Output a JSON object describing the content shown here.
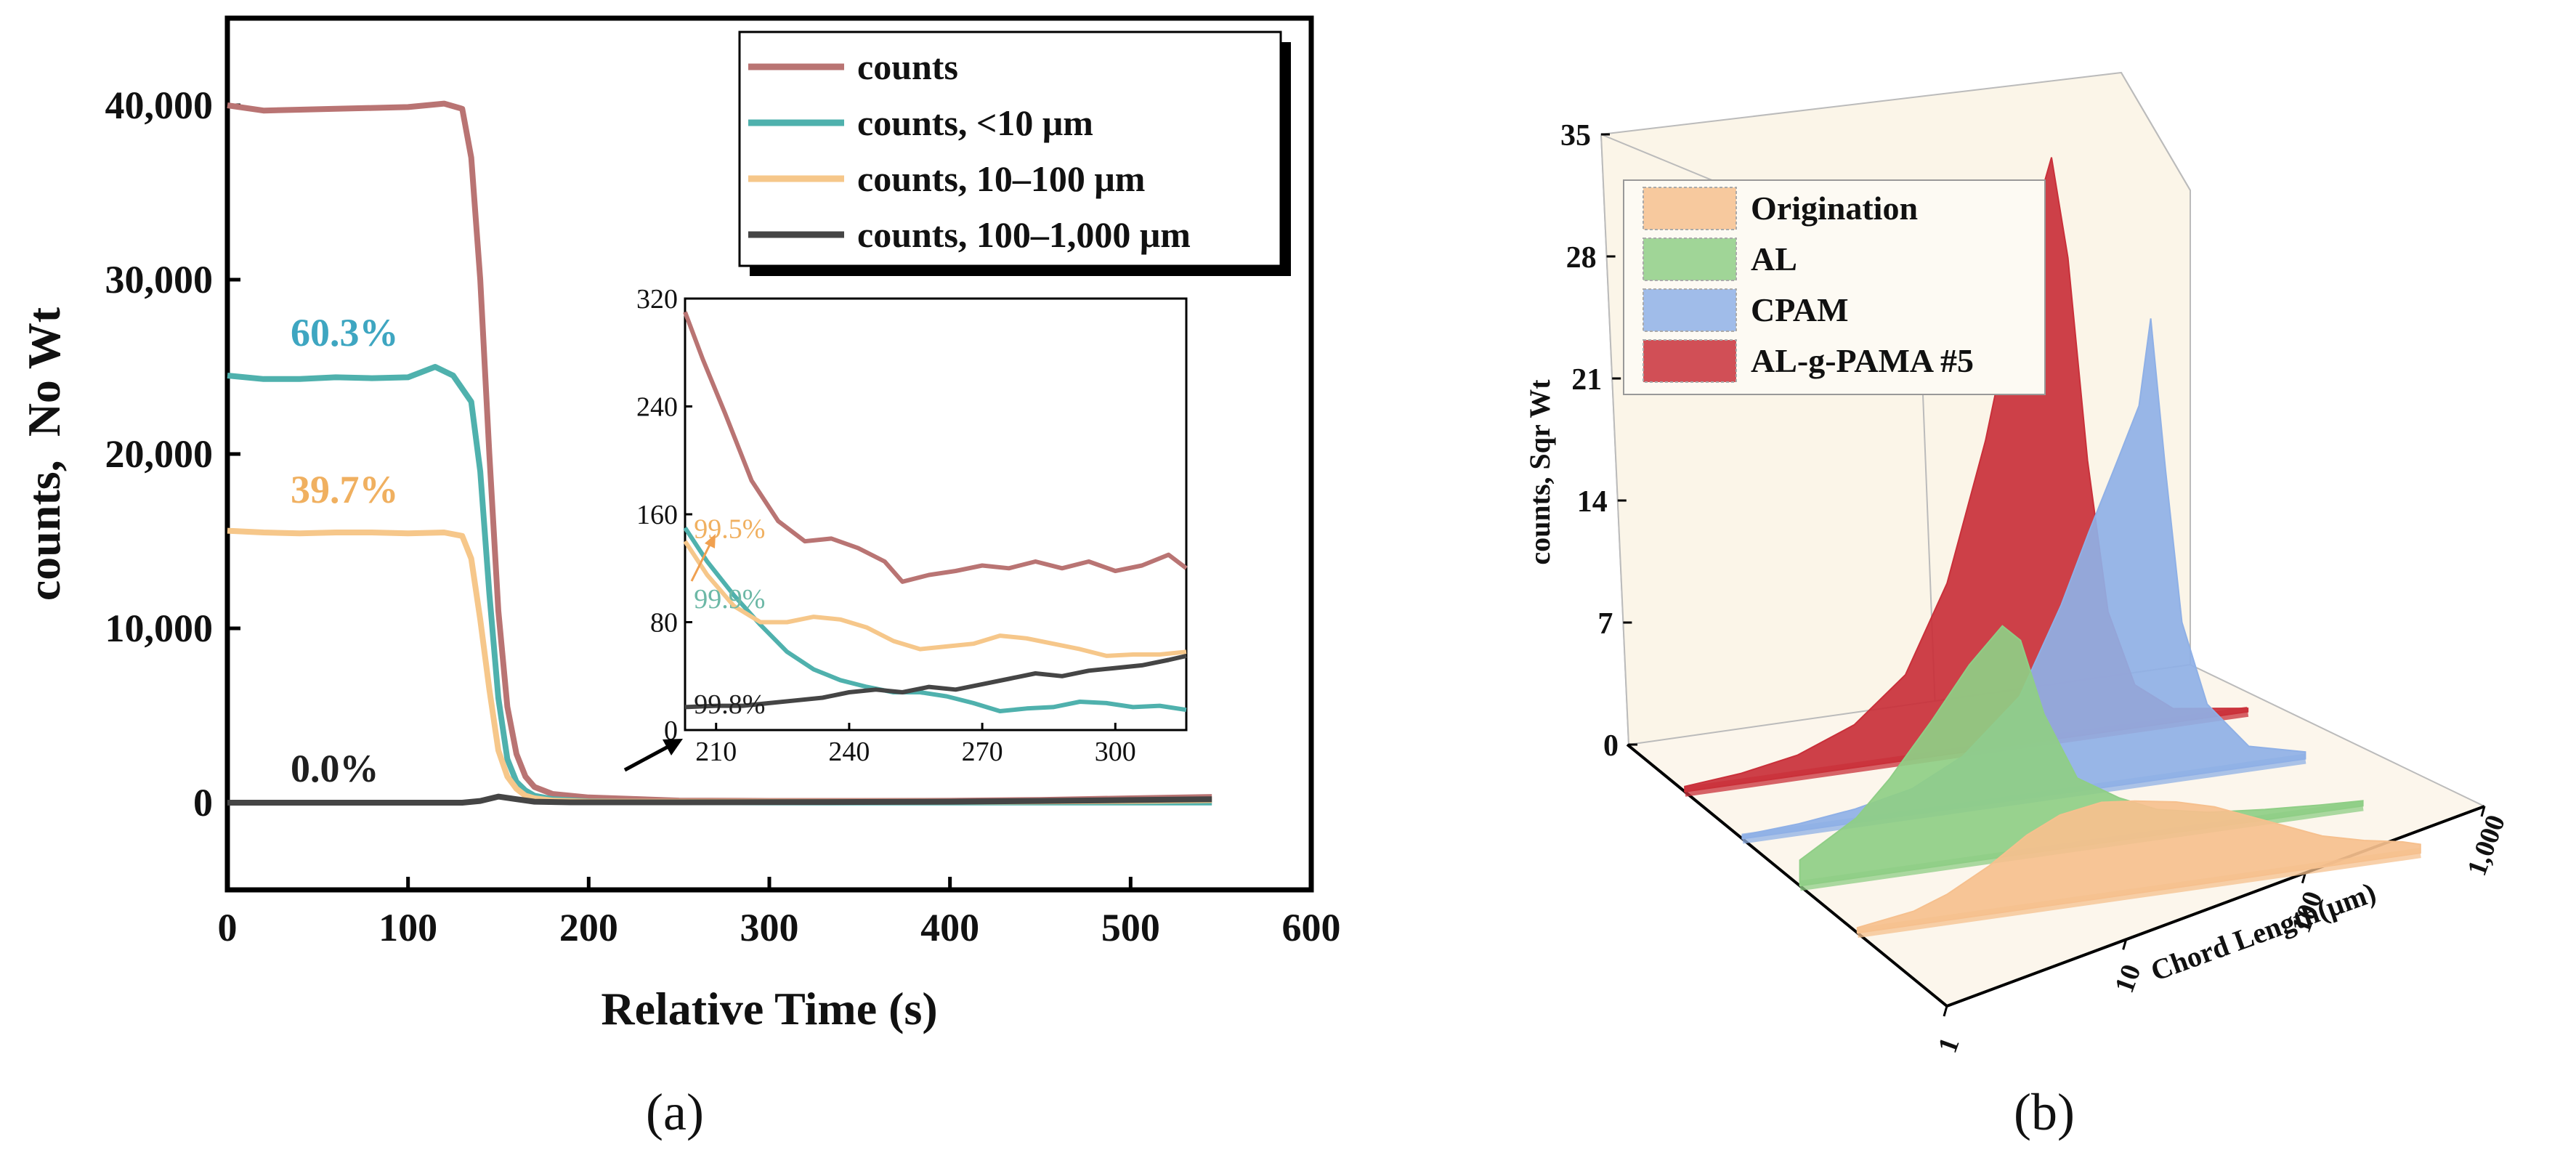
{
  "panel_labels": {
    "a": "(a)",
    "b": "(b)"
  },
  "chart_data": [
    {
      "type": "line",
      "panel": "a",
      "title": "",
      "xlabel": "Relative Time (s)",
      "ylabel": "counts,  No Wt",
      "xlim": [
        0,
        600
      ],
      "ylim": [
        -5000,
        45000
      ],
      "xticks": [
        0,
        100,
        200,
        300,
        400,
        500,
        600
      ],
      "xtick_labels": [
        "0",
        "100",
        "200",
        "300",
        "400",
        "500",
        "600"
      ],
      "yticks": [
        0,
        10000,
        20000,
        30000,
        40000
      ],
      "ytick_labels": [
        "0",
        "10,000",
        "20,000",
        "30,000",
        "40,000"
      ],
      "legend_position": "top-right",
      "series": [
        {
          "name": "counts",
          "color": "#b97473",
          "x": [
            0,
            20,
            40,
            60,
            80,
            100,
            120,
            130,
            135,
            140,
            145,
            150,
            155,
            160,
            165,
            170,
            180,
            200,
            250,
            300,
            350,
            400,
            450,
            500,
            545
          ],
          "y": [
            40000,
            39700,
            39750,
            39800,
            39850,
            39900,
            40100,
            39800,
            37000,
            30000,
            20000,
            11000,
            5500,
            2800,
            1500,
            900,
            500,
            300,
            120,
            100,
            100,
            110,
            160,
            250,
            330
          ]
        },
        {
          "name": "counts, <10 μm",
          "color": "#4fb1ad",
          "x": [
            0,
            20,
            40,
            60,
            80,
            100,
            115,
            125,
            135,
            140,
            145,
            150,
            155,
            160,
            165,
            170,
            180,
            200,
            250,
            300,
            350,
            400,
            450,
            500,
            545
          ],
          "y": [
            24500,
            24300,
            24300,
            24400,
            24350,
            24400,
            25000,
            24500,
            23000,
            19000,
            12000,
            6000,
            2500,
            1200,
            700,
            400,
            200,
            80,
            30,
            15,
            10,
            10,
            10,
            10,
            10
          ]
        },
        {
          "name": "counts, 10–100 μm",
          "color": "#f6c78a",
          "x": [
            0,
            20,
            40,
            60,
            80,
            100,
            120,
            130,
            135,
            140,
            145,
            150,
            155,
            160,
            165,
            170,
            180,
            200,
            250,
            300,
            350,
            400,
            450,
            500,
            545
          ],
          "y": [
            15600,
            15500,
            15450,
            15500,
            15500,
            15450,
            15500,
            15300,
            14000,
            10500,
            6500,
            3000,
            1500,
            800,
            400,
            250,
            120,
            60,
            60,
            60,
            50,
            60,
            70,
            100,
            150
          ]
        },
        {
          "name": "counts, 100–1,000 μm",
          "color": "#454545",
          "x": [
            0,
            50,
            100,
            130,
            140,
            150,
            160,
            170,
            190,
            250,
            300,
            350,
            400,
            450,
            500,
            545
          ],
          "y": [
            0,
            0,
            0,
            0,
            100,
            350,
            200,
            60,
            20,
            20,
            30,
            40,
            60,
            100,
            150,
            200
          ]
        }
      ],
      "annotations": [
        {
          "text": "60.3%",
          "x": 35,
          "y": 26200,
          "color": "#3ea6c1"
        },
        {
          "text": "39.7%",
          "x": 35,
          "y": 17200,
          "color": "#f0b060"
        },
        {
          "text": "0.0%",
          "x": 35,
          "y": 1200,
          "color": "#1f1f1f"
        }
      ]
    },
    {
      "type": "line",
      "panel": "a-inset",
      "title": "",
      "xlabel": "",
      "ylabel": "",
      "xlim": [
        203,
        316
      ],
      "ylim": [
        0,
        320
      ],
      "xticks": [
        210,
        240,
        270,
        300
      ],
      "xtick_labels": [
        "210",
        "240",
        "270",
        "300"
      ],
      "yticks": [
        0,
        80,
        160,
        240,
        320
      ],
      "ytick_labels": [
        "0",
        "80",
        "160",
        "240",
        "320"
      ],
      "series": [
        {
          "name": "counts",
          "color": "#b97473",
          "x": [
            203,
            207,
            212,
            218,
            224,
            230,
            236,
            242,
            248,
            252,
            258,
            264,
            270,
            276,
            282,
            288,
            294,
            300,
            306,
            312,
            316
          ],
          "y": [
            310,
            275,
            235,
            185,
            155,
            140,
            142,
            135,
            125,
            110,
            115,
            118,
            122,
            120,
            125,
            120,
            125,
            118,
            122,
            130,
            120
          ]
        },
        {
          "name": "counts, <10 μm",
          "color": "#4fb1ad",
          "x": [
            203,
            208,
            214,
            220,
            226,
            232,
            238,
            244,
            250,
            256,
            262,
            268,
            274,
            280,
            286,
            292,
            298,
            304,
            310,
            316
          ],
          "y": [
            150,
            125,
            100,
            78,
            58,
            45,
            37,
            32,
            28,
            28,
            25,
            20,
            14,
            16,
            17,
            21,
            20,
            17,
            18,
            15
          ]
        },
        {
          "name": "counts, 10–100 μm",
          "color": "#f6c78a",
          "x": [
            203,
            208,
            214,
            220,
            226,
            232,
            238,
            244,
            250,
            256,
            262,
            268,
            274,
            280,
            286,
            292,
            298,
            304,
            310,
            316
          ],
          "y": [
            140,
            115,
            92,
            80,
            80,
            84,
            82,
            76,
            66,
            60,
            62,
            64,
            70,
            68,
            64,
            60,
            55,
            56,
            56,
            58
          ]
        },
        {
          "name": "counts, 100–1,000 μm",
          "color": "#454545",
          "x": [
            203,
            210,
            216,
            222,
            228,
            234,
            240,
            246,
            252,
            258,
            264,
            270,
            276,
            282,
            288,
            294,
            300,
            306,
            312,
            316
          ],
          "y": [
            17,
            18,
            18,
            20,
            22,
            24,
            28,
            30,
            28,
            32,
            30,
            34,
            38,
            42,
            40,
            44,
            46,
            48,
            52,
            55
          ]
        }
      ],
      "annotations": [
        {
          "text": "99.5%",
          "x": 205,
          "y": 150,
          "color": "#f0b060"
        },
        {
          "text": "99.9%",
          "x": 205,
          "y": 98,
          "color": "#6cb8a6"
        },
        {
          "text": "99.8%",
          "x": 205,
          "y": 20,
          "color": "#1f1f1f"
        }
      ]
    },
    {
      "type": "area3d",
      "panel": "b",
      "title": "",
      "xlabel": "Chord Length(μm)",
      "ylabel": "counts, Sqr Wt",
      "zlim": [
        0,
        35
      ],
      "zticks": [
        0,
        7,
        14,
        21,
        28,
        35
      ],
      "ztick_labels": [
        "0",
        "7",
        "14",
        "21",
        "28",
        "35"
      ],
      "xscale": "log",
      "xticks": [
        1,
        10,
        100,
        1000
      ],
      "xtick_labels": [
        "1",
        "10",
        "100",
        "1,000"
      ],
      "legend_position": "top-left",
      "series": [
        {
          "name": "Origination",
          "color": "#f6c08e",
          "x": [
            1,
            2,
            3,
            5,
            8,
            12,
            20,
            30,
            50,
            80,
            120,
            200,
            300,
            500,
            800,
            1000
          ],
          "y": [
            0.3,
            0.8,
            1.5,
            2.8,
            4.3,
            5.2,
            5.6,
            5.4,
            5.0,
            4.4,
            3.6,
            2.6,
            1.8,
            1.2,
            0.8,
            0.5
          ]
        },
        {
          "name": "AL",
          "color": "#8fce86",
          "x": [
            1,
            2,
            3,
            5,
            8,
            12,
            15,
            20,
            30,
            50,
            80,
            150,
            300,
            600,
            1000
          ],
          "y": [
            1.5,
            3.5,
            5.5,
            8.5,
            11.5,
            13.5,
            12.5,
            8.0,
            4.0,
            2.5,
            1.5,
            0.9,
            0.6,
            0.4,
            0.3
          ]
        },
        {
          "name": "CPAM",
          "color": "#8fb0e6",
          "x": [
            1,
            2,
            4,
            8,
            15,
            30,
            50,
            70,
            100,
            130,
            150,
            180,
            220,
            300,
            500,
            1000
          ],
          "y": [
            0.2,
            0.4,
            0.8,
            1.5,
            3.0,
            6.0,
            11.0,
            15.0,
            19.0,
            22.0,
            27.0,
            18.0,
            9.0,
            4.0,
            1.2,
            0.4
          ]
        },
        {
          "name": "AL-g-PAMA #5",
          "color": "#c9303a",
          "x": [
            1,
            2,
            4,
            8,
            15,
            25,
            40,
            55,
            70,
            90,
            110,
            140,
            180,
            250,
            400,
            1000
          ],
          "y": [
            0.3,
            0.6,
            1.2,
            2.5,
            5.0,
            10.0,
            18.0,
            25.0,
            30.0,
            34.0,
            28.0,
            16.0,
            7.0,
            2.5,
            0.8,
            0.2
          ]
        }
      ]
    }
  ]
}
